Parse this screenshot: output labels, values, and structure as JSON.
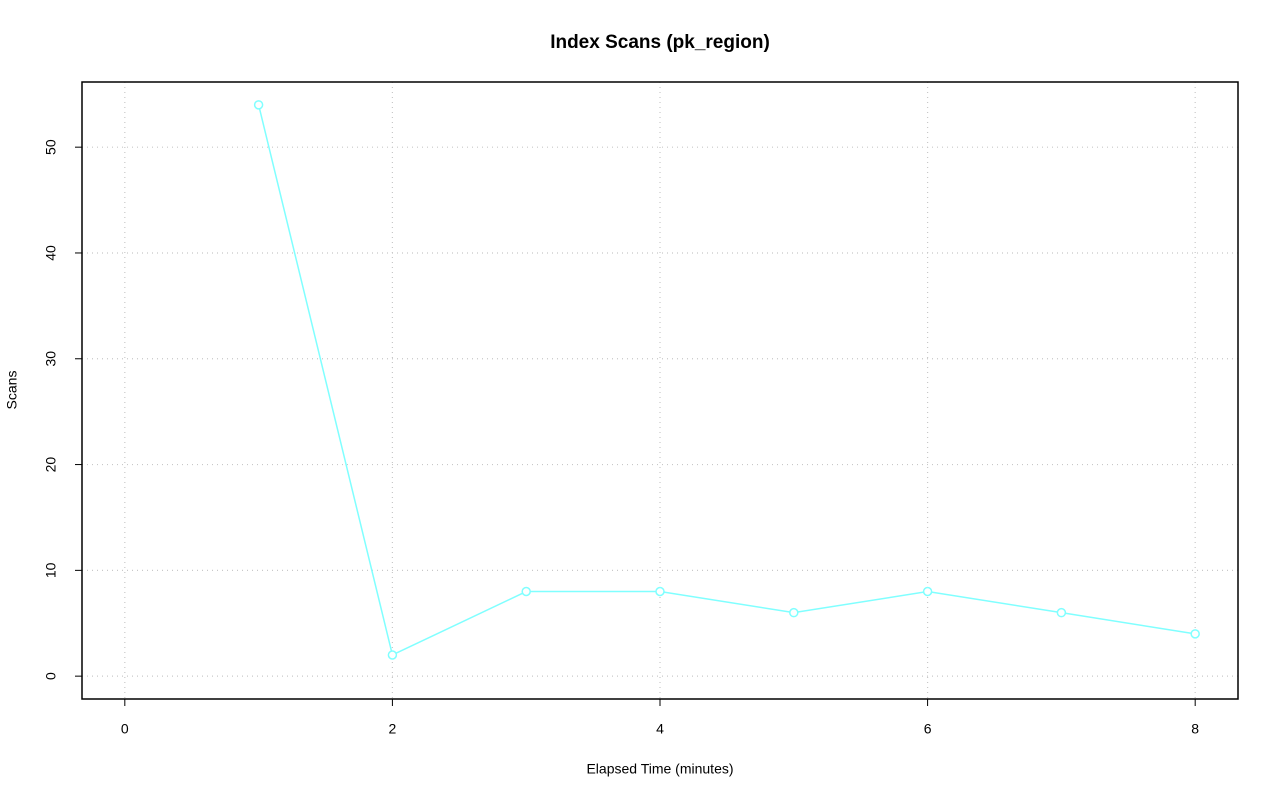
{
  "chart_data": {
    "type": "line",
    "title": "Index Scans (pk_region)",
    "x_label": "Elapsed Time (minutes)",
    "y_label": "Scans",
    "x": [
      1,
      2,
      3,
      4,
      5,
      6,
      7,
      8
    ],
    "values": [
      54,
      2,
      8,
      8,
      6,
      8,
      6,
      4
    ],
    "color": "#80ffff",
    "xlim": [
      -0.32,
      8.32
    ],
    "xticks": [
      0,
      2,
      4,
      6,
      8
    ],
    "ylim": [
      -2.16,
      56.16
    ],
    "yticks": [
      0,
      10,
      20,
      30,
      40,
      50
    ],
    "grid": true
  }
}
